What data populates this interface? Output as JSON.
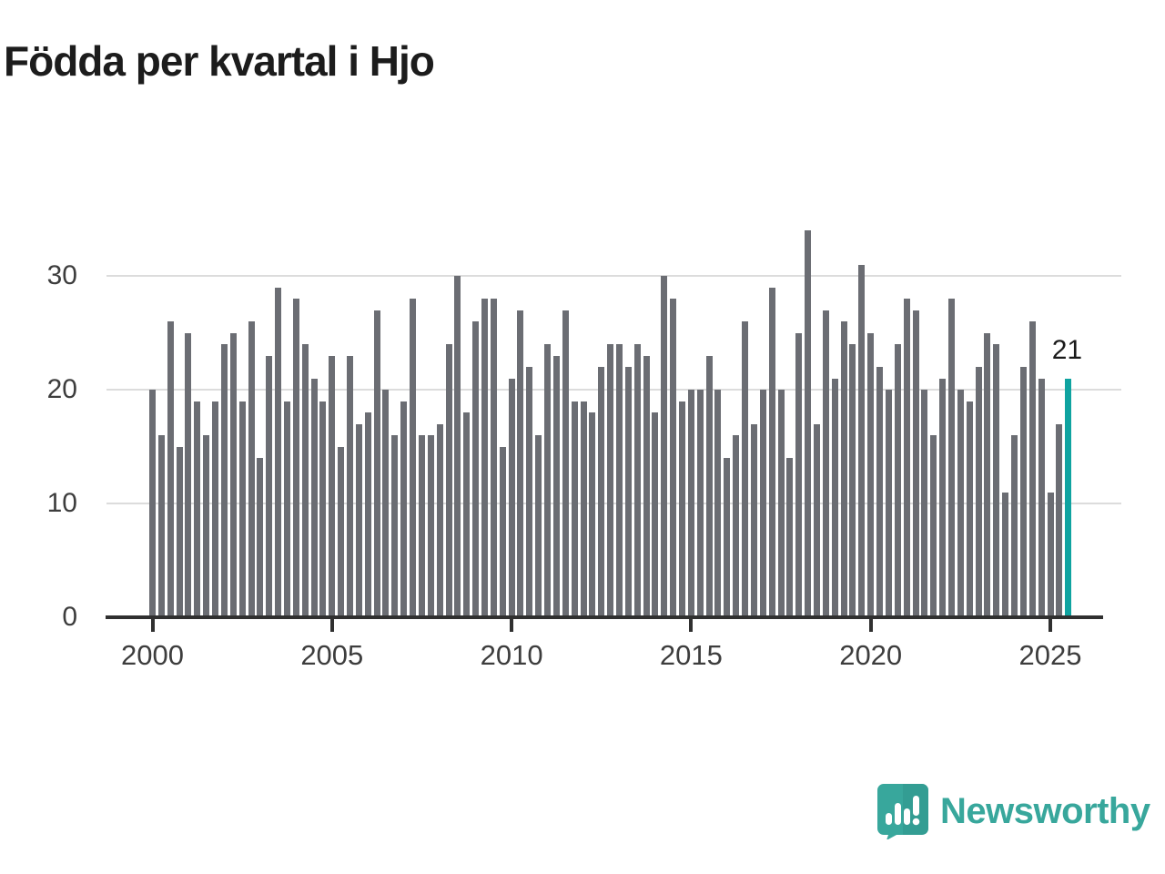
{
  "title": "Födda per kvartal i Hjo",
  "annotation_label": "21",
  "brand": "Newsworthy",
  "colors": {
    "bar": "#6b6d73",
    "highlight": "#0fa3a0",
    "logo_teal": "#38a79c",
    "logo_teal_dark": "#2f968c",
    "axis_line": "#303030",
    "grid": "#dcdcdc",
    "label": "#3d3d3d",
    "title_text": "#1c1c1c"
  },
  "chart_data": {
    "type": "bar",
    "title": "Födda per kvartal i Hjo",
    "x_unit": "quarter",
    "start_year": 2000,
    "start_quarter": 1,
    "end_year": 2025,
    "end_quarter": 3,
    "values": [
      20,
      16,
      26,
      15,
      25,
      19,
      16,
      19,
      24,
      25,
      19,
      26,
      14,
      23,
      29,
      19,
      28,
      24,
      21,
      19,
      23,
      15,
      23,
      17,
      18,
      27,
      20,
      16,
      19,
      28,
      16,
      16,
      17,
      24,
      30,
      18,
      26,
      28,
      28,
      15,
      21,
      27,
      22,
      16,
      24,
      23,
      27,
      19,
      19,
      18,
      22,
      24,
      24,
      22,
      24,
      23,
      18,
      30,
      28,
      19,
      20,
      20,
      23,
      20,
      14,
      16,
      26,
      17,
      20,
      29,
      20,
      14,
      25,
      34,
      17,
      27,
      21,
      26,
      24,
      31,
      25,
      22,
      20,
      24,
      28,
      27,
      20,
      16,
      21,
      28,
      20,
      19,
      22,
      25,
      24,
      11,
      16,
      22,
      26,
      21,
      11,
      17,
      21
    ],
    "highlight_last": true,
    "highlight_value": 21,
    "annotation": "21",
    "ylim": [
      0,
      35
    ],
    "y_ticks": [
      0,
      10,
      20,
      30
    ],
    "x_tick_years": [
      2000,
      2005,
      2010,
      2015,
      2020,
      2025
    ],
    "grid": "horizontal",
    "legend": "none"
  }
}
